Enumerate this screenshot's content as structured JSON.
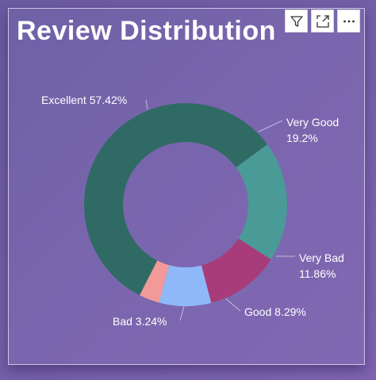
{
  "title": "Review Distribution",
  "toolbar": {
    "filter_icon": "filter-icon",
    "focus_icon": "focus-mode-icon",
    "more_icon": "more-options-icon"
  },
  "chart_data": {
    "type": "pie",
    "variant": "donut",
    "title": "Review Distribution",
    "slices": [
      {
        "label": "Excellent",
        "value": 57.42,
        "value_label": "57.42%",
        "color": "#2f6b64"
      },
      {
        "label": "Very Good",
        "value": 19.2,
        "value_label": "19.2%",
        "color": "#4a9a98"
      },
      {
        "label": "Very Bad",
        "value": 11.86,
        "value_label": "11.86%",
        "color": "#a83c7a"
      },
      {
        "label": "Good",
        "value": 8.29,
        "value_label": "8.29%",
        "color": "#8fb8f8"
      },
      {
        "label": "Bad",
        "value": 3.24,
        "value_label": "3.24%",
        "color": "#f29a9a"
      }
    ],
    "legend": "none",
    "data_labels": "outside"
  }
}
